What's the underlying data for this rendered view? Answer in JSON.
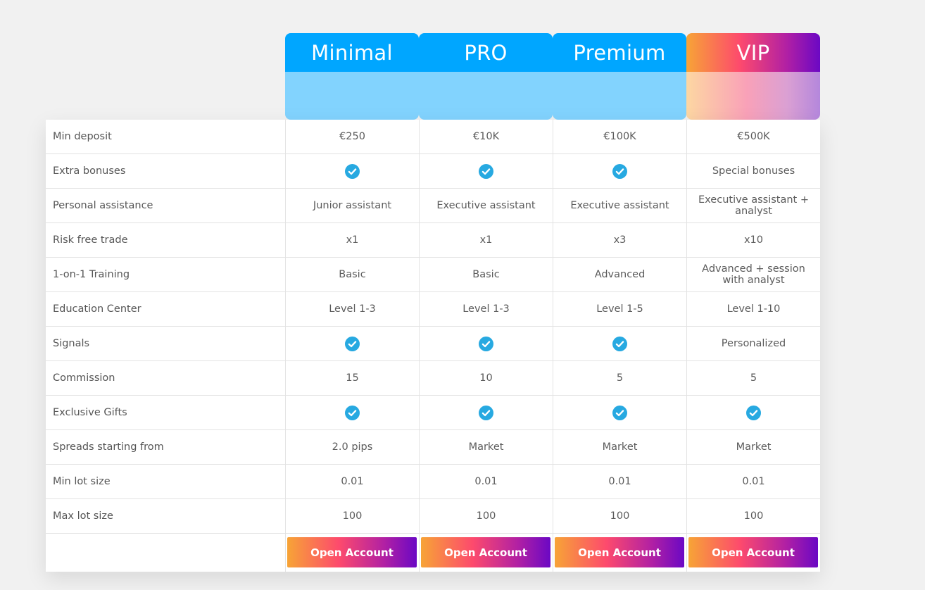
{
  "plans": [
    {
      "name": "Minimal",
      "style": "blue"
    },
    {
      "name": "PRO",
      "style": "blue"
    },
    {
      "name": "Premium",
      "style": "blue"
    },
    {
      "name": "VIP",
      "style": "vip"
    }
  ],
  "rows": [
    {
      "label": "Min deposit",
      "values": [
        "€250",
        "€10K",
        "€100K",
        "€500K"
      ]
    },
    {
      "label": "Extra bonuses",
      "values": [
        "check",
        "check",
        "check",
        "Special bonuses"
      ]
    },
    {
      "label": "Personal assistance",
      "values": [
        "Junior assistant",
        "Executive assistant",
        "Executive assistant",
        "Executive assistant + analyst"
      ]
    },
    {
      "label": "Risk free trade",
      "values": [
        "x1",
        "x1",
        "x3",
        "x10"
      ]
    },
    {
      "label": "1-on-1 Training",
      "values": [
        "Basic",
        "Basic",
        "Advanced",
        "Advanced + session with analyst"
      ]
    },
    {
      "label": "Education Center",
      "values": [
        "Level 1-3",
        "Level 1-3",
        "Level 1-5",
        "Level 1-10"
      ]
    },
    {
      "label": "Signals",
      "values": [
        "check",
        "check",
        "check",
        "Personalized"
      ]
    },
    {
      "label": "Commission",
      "values": [
        "15",
        "10",
        "5",
        "5"
      ]
    },
    {
      "label": "Exclusive Gifts",
      "values": [
        "check",
        "check",
        "check",
        "check"
      ]
    },
    {
      "label": "Spreads starting from",
      "values": [
        "2.0 pips",
        "Market",
        "Market",
        "Market"
      ]
    },
    {
      "label": "Min lot size",
      "values": [
        "0.01",
        "0.01",
        "0.01",
        "0.01"
      ]
    },
    {
      "label": "Max lot size",
      "values": [
        "100",
        "100",
        "100",
        "100"
      ]
    }
  ],
  "button_label": "Open Account",
  "colors": {
    "accent_blue": "#00a6ff",
    "check": "#27a9e1",
    "gradient_start": "#f7a436",
    "gradient_end": "#6b08c4"
  },
  "icons": {
    "check": "check-circle-icon"
  }
}
